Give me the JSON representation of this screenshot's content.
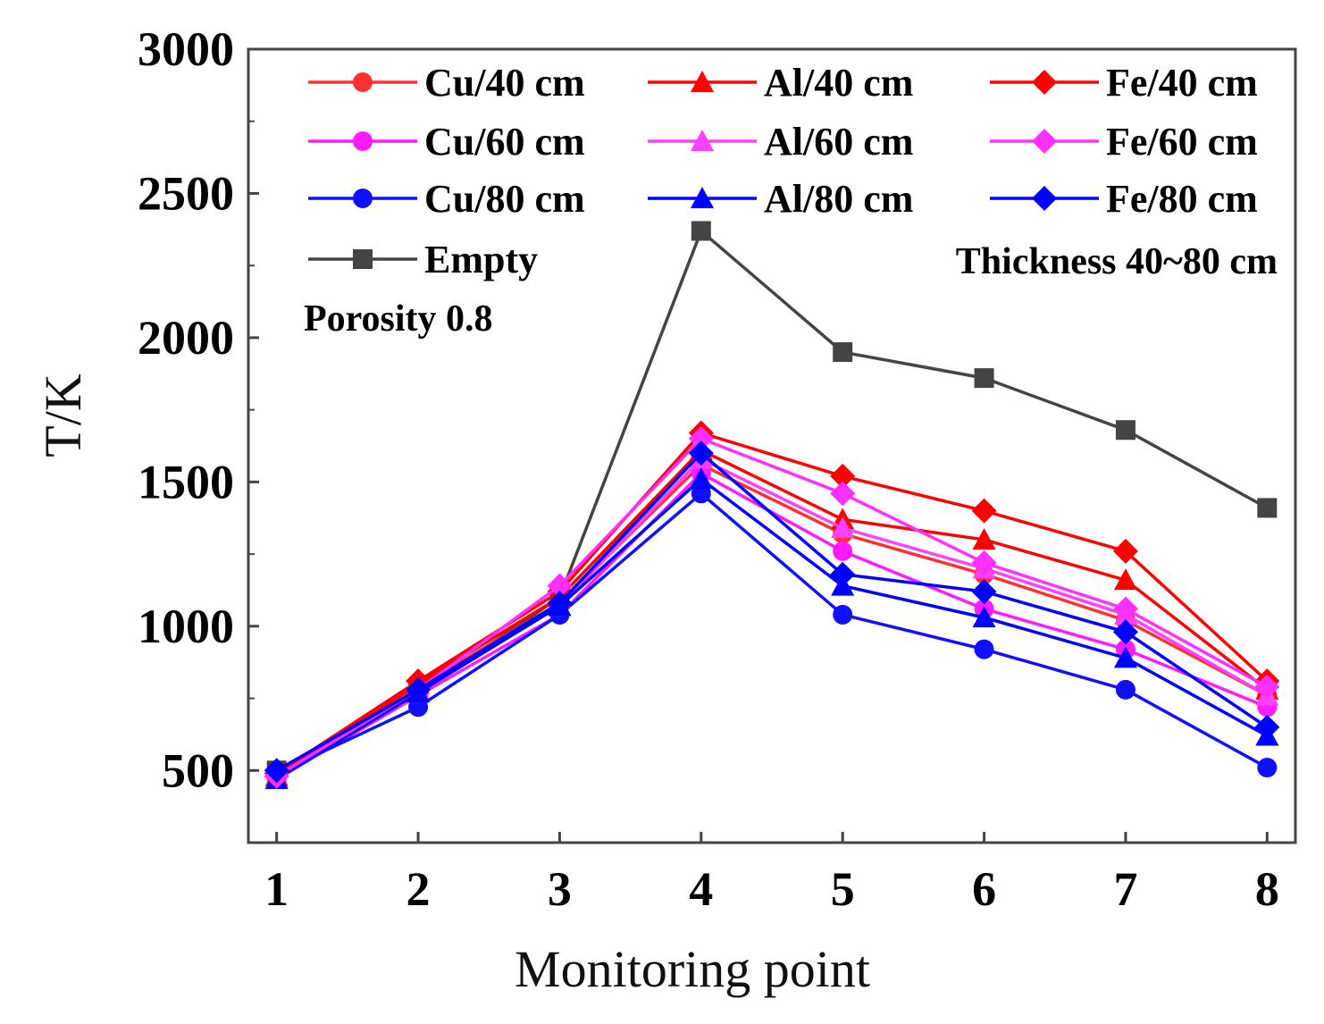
{
  "chart_data": {
    "type": "line",
    "title": "",
    "xlabel": "Monitoring point",
    "ylabel": "T/K",
    "x": [
      1,
      2,
      3,
      4,
      5,
      6,
      7,
      8
    ],
    "xticks": [
      "1",
      "2",
      "3",
      "4",
      "5",
      "6",
      "7",
      "8"
    ],
    "xlim": [
      0.8,
      8.2
    ],
    "ylim": [
      250,
      3000
    ],
    "yticks": [
      500,
      1000,
      1500,
      2000,
      2500,
      3000
    ],
    "yticklabels": [
      "500",
      "1000",
      "1500",
      "2000",
      "2500",
      "3000"
    ],
    "grid": false,
    "legend_position": "top",
    "annotations": [
      "Porosity 0.8",
      "Thickness 40~80 cm"
    ],
    "series": [
      {
        "name": "Cu/40 cm",
        "color": "#ff3030",
        "marker": "circle",
        "values": [
          480,
          790,
          1080,
          1560,
          1320,
          1180,
          1020,
          760
        ]
      },
      {
        "name": "Cu/60 cm",
        "color": "#ff1aff",
        "marker": "circle",
        "values": [
          470,
          760,
          1040,
          1530,
          1260,
          1060,
          920,
          720
        ]
      },
      {
        "name": "Cu/80 cm",
        "color": "#1010ff",
        "marker": "circle",
        "values": [
          490,
          720,
          1040,
          1460,
          1040,
          920,
          780,
          510
        ]
      },
      {
        "name": "Al/40 cm",
        "color": "#ff0000",
        "marker": "triangle",
        "values": [
          480,
          800,
          1100,
          1610,
          1370,
          1300,
          1160,
          780
        ]
      },
      {
        "name": "Al/60 cm",
        "color": "#ff40ff",
        "marker": "triangle",
        "values": [
          470,
          770,
          1070,
          1580,
          1340,
          1200,
          1040,
          760
        ]
      },
      {
        "name": "Al/80 cm",
        "color": "#0000ff",
        "marker": "triangle",
        "values": [
          470,
          770,
          1070,
          1510,
          1140,
          1030,
          890,
          620
        ]
      },
      {
        "name": "Fe/40 cm",
        "color": "#ff0000",
        "marker": "diamond",
        "values": [
          490,
          810,
          1120,
          1670,
          1520,
          1400,
          1260,
          810
        ]
      },
      {
        "name": "Fe/60 cm",
        "color": "#ff30ff",
        "marker": "diamond",
        "values": [
          480,
          780,
          1140,
          1650,
          1460,
          1220,
          1060,
          790
        ]
      },
      {
        "name": "Fe/80 cm",
        "color": "#0000ff",
        "marker": "diamond",
        "values": [
          500,
          780,
          1080,
          1600,
          1180,
          1120,
          980,
          650
        ]
      },
      {
        "name": "Empty",
        "color": "#444444",
        "marker": "square",
        "values": [
          500,
          770,
          1100,
          2370,
          1950,
          1860,
          1680,
          1410
        ]
      }
    ]
  }
}
